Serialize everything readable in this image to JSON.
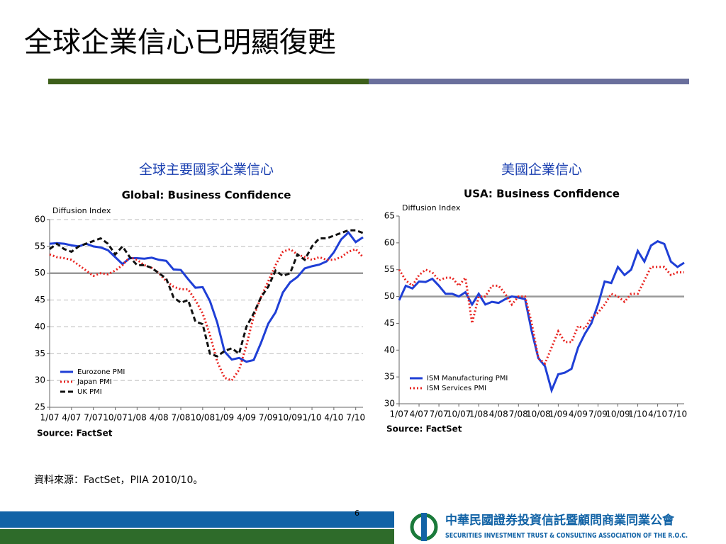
{
  "slide_title": "全球企業信心已明顯復甦",
  "source_note": "資料來源：FactSet，PIIA 2010/10。",
  "page_number": "6",
  "org_name_zh": "中華民國證券投資信託暨顧問商業同業公會",
  "org_name_en": "SECURITIES INVESTMENT TRUST & CONSULTING ASSOCIATION OF THE R.O.C.",
  "chart_data": [
    {
      "type": "line",
      "heading": "全球主要國家企業信心",
      "title": "Global: Business Confidence",
      "ylabel": "Diffusion Index",
      "source": "Source: FactSet",
      "categories": [
        "1/07",
        null,
        null,
        "4/07",
        null,
        null,
        "7/07",
        null,
        null,
        "10/07",
        null,
        null,
        "1/08",
        null,
        null,
        "4/08",
        null,
        null,
        "7/08",
        null,
        null,
        "10/08",
        null,
        null,
        "1/09",
        null,
        null,
        "4/09",
        null,
        null,
        "7/09",
        null,
        null,
        "10/09",
        null,
        null,
        "1/10",
        null,
        null,
        "4/10",
        null,
        null,
        "7/10",
        null
      ],
      "ylim": [
        25,
        60
      ],
      "yticks": [
        25,
        30,
        35,
        40,
        45,
        50,
        55,
        60
      ],
      "reference_line": 50,
      "grid": true,
      "legend": "lower left",
      "series": [
        {
          "name": "Eurozone PMI",
          "color": "#1f3fd6",
          "style": "solid",
          "values": [
            55.5,
            55.6,
            55.5,
            55.2,
            55.0,
            55.5,
            55.0,
            54.8,
            54.3,
            53.0,
            51.7,
            52.8,
            52.8,
            52.7,
            52.9,
            52.5,
            52.3,
            50.7,
            50.6,
            48.9,
            47.3,
            47.4,
            44.8,
            40.8,
            35.4,
            33.9,
            34.2,
            33.5,
            33.8,
            37.0,
            40.6,
            42.7,
            46.4,
            48.3,
            49.3,
            50.9,
            51.3,
            51.6,
            52.2,
            53.9,
            56.3,
            57.6,
            55.8,
            56.7
          ]
        },
        {
          "name": "Japan PMI",
          "color": "#e8231f",
          "style": "dotted",
          "values": [
            53.5,
            53.0,
            52.8,
            52.5,
            51.5,
            50.5,
            49.5,
            50.0,
            49.8,
            50.5,
            51.5,
            53.0,
            52.5,
            51.5,
            51.0,
            50.0,
            48.5,
            47.5,
            47.0,
            47.0,
            45.0,
            42.5,
            38.5,
            33.5,
            30.5,
            30.0,
            32.0,
            36.5,
            42.0,
            45.5,
            48.5,
            51.5,
            54.0,
            54.5,
            53.5,
            53.0,
            52.5,
            53.0,
            52.5,
            52.5,
            53.0,
            54.0,
            54.5,
            53.0
          ]
        },
        {
          "name": "UK PMI",
          "color": "#111111",
          "style": "dashed",
          "values": [
            54.5,
            55.5,
            54.5,
            54.0,
            55.0,
            55.5,
            56.0,
            56.5,
            55.5,
            53.5,
            55.0,
            53.0,
            51.5,
            51.5,
            51.0,
            50.0,
            49.0,
            45.5,
            44.5,
            45.0,
            41.0,
            40.5,
            35.0,
            34.5,
            35.5,
            36.0,
            35.0,
            40.0,
            42.5,
            45.5,
            47.5,
            50.5,
            49.5,
            50.0,
            53.5,
            52.5,
            55.0,
            56.5,
            56.5,
            57.0,
            57.5,
            58.0,
            58.0,
            57.5
          ]
        }
      ]
    },
    {
      "type": "line",
      "heading": "美國企業信心",
      "title": "USA: Business Confidence",
      "ylabel": "Diffusion Index",
      "source": "Source: FactSet",
      "categories": [
        "1/07",
        null,
        null,
        "4/07",
        null,
        null,
        "7/07",
        null,
        null,
        "10/07",
        null,
        null,
        "1/08",
        null,
        null,
        "4/08",
        null,
        null,
        "7/08",
        null,
        null,
        "10/08",
        null,
        null,
        "1/09",
        null,
        null,
        "4/09",
        null,
        null,
        "7/09",
        null,
        null,
        "10/09",
        null,
        null,
        "1/10",
        null,
        null,
        "4/10",
        null,
        null,
        "7/10",
        null
      ],
      "ylim": [
        30,
        65
      ],
      "yticks": [
        30,
        35,
        40,
        45,
        50,
        55,
        60,
        65
      ],
      "reference_line": 50,
      "grid": false,
      "legend": "lower left",
      "series": [
        {
          "name": "ISM Manufacturing PMI",
          "color": "#1f3fd6",
          "style": "solid",
          "values": [
            49.3,
            52.0,
            51.5,
            52.8,
            52.7,
            53.3,
            52.0,
            50.5,
            50.5,
            50.0,
            50.8,
            48.5,
            50.5,
            48.5,
            49.0,
            48.8,
            49.5,
            50.0,
            49.8,
            49.5,
            43.5,
            38.5,
            37.0,
            32.5,
            35.5,
            35.8,
            36.5,
            40.5,
            43.0,
            45.0,
            48.5,
            52.8,
            52.5,
            55.5,
            54.0,
            55.0,
            58.5,
            56.5,
            59.5,
            60.3,
            59.8,
            56.5,
            55.5,
            56.3
          ]
        },
        {
          "name": "ISM Services PMI",
          "color": "#e8231f",
          "style": "dotted",
          "values": [
            55.0,
            53.0,
            52.0,
            54.0,
            55.0,
            54.5,
            53.0,
            53.5,
            53.5,
            52.0,
            53.5,
            45.0,
            50.0,
            50.0,
            52.0,
            52.0,
            50.5,
            48.5,
            50.0,
            50.0,
            45.0,
            38.5,
            37.5,
            40.5,
            43.5,
            41.5,
            41.5,
            44.5,
            44.0,
            46.0,
            47.0,
            48.5,
            50.5,
            50.0,
            49.0,
            50.5,
            50.5,
            53.0,
            55.5,
            55.5,
            55.5,
            54.0,
            54.5,
            54.5
          ]
        }
      ]
    }
  ]
}
